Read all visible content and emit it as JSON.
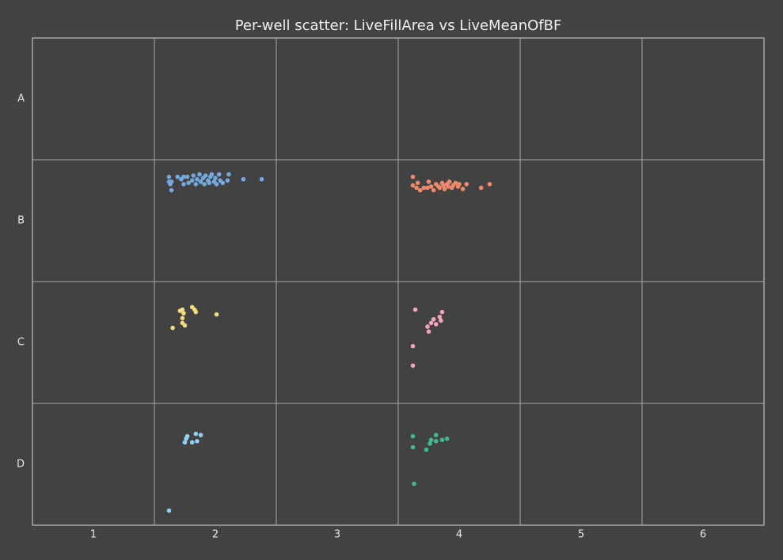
{
  "chart_data": {
    "type": "scatter",
    "title": "Per-well scatter: LiveFillArea vs LiveMeanOfBF",
    "xlim": [
      0.5,
      6.5
    ],
    "xticks": [
      1,
      2,
      3,
      4,
      5,
      6
    ],
    "ylim": [
      4.5,
      0.5
    ],
    "yticks": [
      {
        "value": 1,
        "label": "A"
      },
      {
        "value": 2,
        "label": "B"
      },
      {
        "value": 3,
        "label": "C"
      },
      {
        "value": 4,
        "label": "D"
      }
    ],
    "grid": true,
    "series": [
      {
        "color": "#74a9de",
        "x": [
          1.62,
          1.62,
          1.63,
          1.64,
          1.64,
          1.69,
          1.72,
          1.74,
          1.74,
          1.77,
          1.78,
          1.81,
          1.82,
          1.84,
          1.85,
          1.87,
          1.88,
          1.9,
          1.91,
          1.92,
          1.94,
          1.95,
          1.96,
          1.97,
          1.99,
          2.0,
          2.01,
          2.03,
          2.04,
          2.06,
          2.1,
          2.11,
          2.23,
          2.38
        ],
        "values": [
          1.64,
          1.68,
          1.7,
          1.75,
          1.68,
          1.64,
          1.66,
          1.64,
          1.7,
          1.64,
          1.69,
          1.67,
          1.63,
          1.7,
          1.66,
          1.62,
          1.68,
          1.65,
          1.7,
          1.63,
          1.67,
          1.69,
          1.64,
          1.62,
          1.68,
          1.65,
          1.7,
          1.62,
          1.67,
          1.69,
          1.67,
          1.62,
          1.66,
          1.66
        ]
      },
      {
        "color": "#f0896b",
        "x": [
          3.62,
          3.62,
          3.65,
          3.66,
          3.68,
          3.71,
          3.74,
          3.75,
          3.77,
          3.79,
          3.81,
          3.83,
          3.84,
          3.86,
          3.87,
          3.88,
          3.9,
          3.91,
          3.92,
          3.94,
          3.95,
          3.97,
          3.99,
          4.0,
          4.03,
          4.06,
          4.18,
          4.25
        ],
        "values": [
          1.64,
          1.71,
          1.73,
          1.69,
          1.75,
          1.73,
          1.73,
          1.68,
          1.72,
          1.75,
          1.7,
          1.72,
          1.73,
          1.69,
          1.71,
          1.74,
          1.7,
          1.72,
          1.68,
          1.73,
          1.71,
          1.69,
          1.72,
          1.7,
          1.74,
          1.7,
          1.73,
          1.7
        ]
      },
      {
        "color": "#f3da83",
        "x": [
          1.65,
          1.71,
          1.73,
          1.74,
          1.73,
          1.73,
          1.75,
          1.81,
          1.83,
          1.84,
          2.01
        ],
        "values": [
          2.88,
          2.74,
          2.73,
          2.76,
          2.8,
          2.84,
          2.86,
          2.71,
          2.73,
          2.75,
          2.77
        ]
      },
      {
        "color": "#f4a6b8",
        "x": [
          3.64,
          3.86,
          3.84,
          3.79,
          3.85,
          3.77,
          3.81,
          3.74,
          3.75,
          3.62,
          3.62
        ],
        "values": [
          2.73,
          2.75,
          2.79,
          2.81,
          2.82,
          2.84,
          2.85,
          2.87,
          2.91,
          3.03,
          3.19
        ]
      },
      {
        "color": "#8fd2f3",
        "x": [
          1.62,
          1.77,
          1.76,
          1.75,
          1.81,
          1.84,
          1.88,
          1.85
        ],
        "values": [
          4.38,
          3.77,
          3.79,
          3.82,
          3.82,
          3.75,
          3.76,
          3.81
        ]
      },
      {
        "color": "#3fbc8f",
        "x": [
          3.62,
          3.81,
          3.9,
          3.86,
          3.77,
          3.81,
          3.76,
          3.62,
          3.73,
          3.63
        ],
        "values": [
          3.77,
          3.76,
          3.79,
          3.8,
          3.8,
          3.81,
          3.83,
          3.86,
          3.88,
          4.16
        ]
      }
    ]
  }
}
